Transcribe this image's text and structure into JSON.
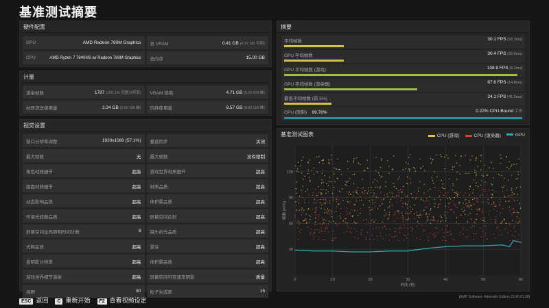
{
  "page": {
    "title": "基准测试摘要"
  },
  "hardware": {
    "header": "硬件配置",
    "gpu_label": "GPU",
    "gpu_value": "AMD Radeon 780M Graphics",
    "vram_label": "总 VRAM",
    "vram_value": "0.41 GB",
    "vram_sub": "(6.97 GB 可用)",
    "cpu_label": "CPU",
    "cpu_value": "AMD Ryzen 7 7840HS w/ Radeon 780M Graphics",
    "mem_label": "总内存",
    "mem_value": "15.00 GB"
  },
  "stats": {
    "header": "计量",
    "frames_label": "渲染帧数",
    "frames_value": "1797",
    "frames_sub": "(100.1% 完整分辨率)",
    "vram_use_label": "VRAM 使用",
    "vram_use_value": "4.71 GB",
    "vram_use_sub": "(5.06 GB 峰)",
    "stream_label": "材质流送使用量",
    "stream_value": "2.34 GB",
    "stream_sub": "(2.66 GB 峰)",
    "mem_use_label": "内存使用量",
    "mem_use_value": "8.57 GB",
    "mem_use_sub": "(8.83 GB 峰)"
  },
  "visual": {
    "header": "视觉设置",
    "rows": [
      {
        "l_label": "窗口分辨率调整",
        "l_value": "1920x1080 (57.1%)",
        "r_label": "垂直同步",
        "r_value": "关闭"
      },
      {
        "l_label": "最大帧数",
        "l_value": "无",
        "r_label": "最大帧数",
        "r_value": "没有限制"
      },
      {
        "l_label": "角色材质细节",
        "l_value": "超高",
        "r_label": "游戏世界材质细节",
        "r_value": "超高"
      },
      {
        "l_label": "路面材质细节",
        "l_value": "超高",
        "r_label": "材质品质",
        "r_value": "超高"
      },
      {
        "l_label": "动态影响品质",
        "l_value": "超高",
        "r_label": "体积雾品质",
        "r_value": "超高"
      },
      {
        "l_label": "环境光遮蔽品质",
        "l_value": "超高",
        "r_label": "屏幕空间反射",
        "r_value": "超高"
      },
      {
        "l_label": "屏幕空间全局照明时间计数",
        "l_value": "8",
        "r_label": "镜头折光品质",
        "r_value": "超高"
      },
      {
        "l_label": "光照品质",
        "l_value": "超高",
        "r_label": "景深",
        "r_value": "超高"
      },
      {
        "l_label": "自阴影分辨率",
        "l_value": "超高",
        "r_label": "体积雾品质",
        "r_value": "超高"
      },
      {
        "l_label": "游戏世界细节渲染",
        "l_value": "超高",
        "r_label": "屏幕空间可变速率阴影",
        "r_value": "质量"
      },
      {
        "l_label": "视野",
        "l_value": "80",
        "r_label": "粒子生成率",
        "r_value": "15"
      }
    ]
  },
  "summary": {
    "header": "摘要",
    "rows": [
      {
        "name": "平均帧数",
        "value": "30.1 FPS",
        "sub": "(33.2ms)",
        "fraction": 0.25,
        "color": "#d6c24a"
      },
      {
        "name": "GPU 平均帧数",
        "value": "30.4 FPS",
        "sub": "(32.9ms)",
        "fraction": 0.25,
        "color": "#d6c24a"
      },
      {
        "name": "GPU 平均帧数 (游戏)",
        "value": "108.9 FPS",
        "sub": "(9.2ms)",
        "fraction": 0.98,
        "color": "#9fc23a"
      },
      {
        "name": "GPU 平均帧数 (渲染器)",
        "value": "67.6 FPS",
        "sub": "(14.8ms)",
        "fraction": 0.56,
        "color": "#9fc23a"
      },
      {
        "name": "最低平均帧数 (前 5%)",
        "value": "24.1 FPS",
        "sub": "(41.5ms)",
        "fraction": 0.2,
        "color": "#d6c24a"
      }
    ],
    "bound": {
      "name": "GPU (限制)",
      "gpu_pct": "99.78%",
      "cpu_value": "0.22%",
      "cpu_label": "CPU-Bound",
      "tail": "工作",
      "color": "#1e9aa6"
    }
  },
  "chart_data": {
    "type": "scatter",
    "title": "基准测试图表",
    "xlabel": "时间 (秒)",
    "ylabel": "帧数 (FPS)",
    "xlim": [
      0,
      60
    ],
    "ylim": [
      0,
      150
    ],
    "x_ticks": [
      0,
      10,
      20,
      30,
      40,
      50,
      60
    ],
    "y_ticks": [
      30,
      60,
      90,
      120
    ],
    "legend_position": "top-right",
    "series": [
      {
        "name": "CPU (游戏)",
        "color": "#e3c24a",
        "band": [
          60,
          140
        ]
      },
      {
        "name": "CPU (渲染器)",
        "color": "#d0443c",
        "band": [
          40,
          100
        ]
      },
      {
        "name": "GPU",
        "color": "#2fa8b4",
        "x": [
          0,
          5,
          10,
          15,
          20,
          25,
          30,
          35,
          40,
          45,
          50,
          55,
          57,
          58,
          60
        ],
        "values": [
          29,
          28,
          28,
          27,
          27,
          28,
          28,
          31,
          33,
          34,
          34,
          35,
          33,
          40,
          38
        ]
      }
    ]
  },
  "footer": {
    "esc_key": "ESC",
    "esc_label": "返回",
    "c_key": "C",
    "c_label": "重新开始",
    "f2_key": "F2",
    "f2_label": "查看视频设定",
    "version": "[AMD Software: Adrenalin Edition 23.40.01.38]"
  }
}
